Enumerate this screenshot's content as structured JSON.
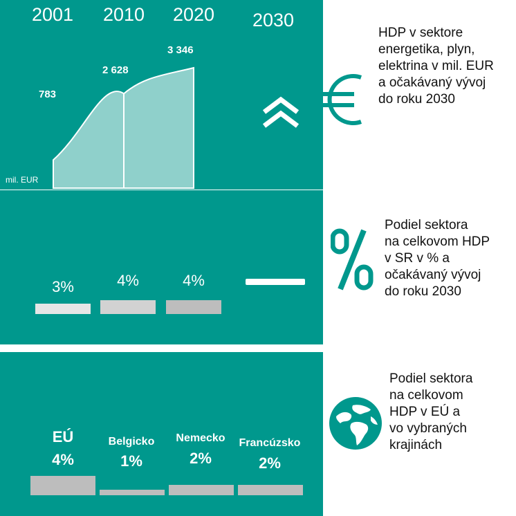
{
  "chart_data": [
    {
      "type": "area",
      "x": [
        "2001",
        "2010",
        "2020"
      ],
      "values": [
        783,
        2628,
        3346
      ],
      "value_labels": [
        "783",
        "2 628",
        "3 346"
      ],
      "forecast_year": "2030",
      "forecast_trend": "up",
      "ylabel": "mil. EUR",
      "description": "HDP v sektore energetika, plyn, elektrina v mil. EUR a očakávaný vývoj do roku 2030"
    },
    {
      "type": "bar",
      "categories": [
        "2001",
        "2010",
        "2020",
        "2030"
      ],
      "values": [
        3,
        4,
        4,
        null
      ],
      "value_labels": [
        "3%",
        "4%",
        "4%",
        ""
      ],
      "description": "Podiel sektora na celkovom HDP v SR v % a očakávaný vývoj do roku 2030"
    },
    {
      "type": "bar",
      "categories": [
        "EÚ",
        "Belgicko",
        "Nemecko",
        "Francúzsko"
      ],
      "values": [
        4,
        1,
        2,
        2
      ],
      "value_labels": [
        "4%",
        "1%",
        "2%",
        "2%"
      ],
      "description": "Podiel sektora na celkovom HDP v EÚ a vo vybraných krajinách"
    }
  ],
  "descriptions": {
    "gdp": [
      "HDP v sektore",
      "energetika, plyn,",
      "elektrina v mil. EUR",
      "a očakávaný vývoj",
      "do roku 2030"
    ],
    "share_sr": [
      "Podiel sektora",
      "na celkovom HDP",
      "v SR v % a",
      "očakávaný vývoj",
      "do roku 2030"
    ],
    "share_eu": [
      "Podiel sektora",
      "na celkovom",
      "HDP v EÚ a",
      "vo vybraných",
      "krajinách"
    ]
  },
  "icons": {
    "gdp": "euro-icon",
    "share_sr": "percent-icon",
    "share_eu": "globe-icon",
    "forecast": "double-chevron-up-icon"
  },
  "colors": {
    "panel": "#00988d",
    "area_fill": "#8fd0cb",
    "bar_light": "#e6e6e6",
    "bar_mid": "#d2d2d2",
    "bar_dark": "#bdbdbd",
    "bar_white": "#ffffff"
  }
}
